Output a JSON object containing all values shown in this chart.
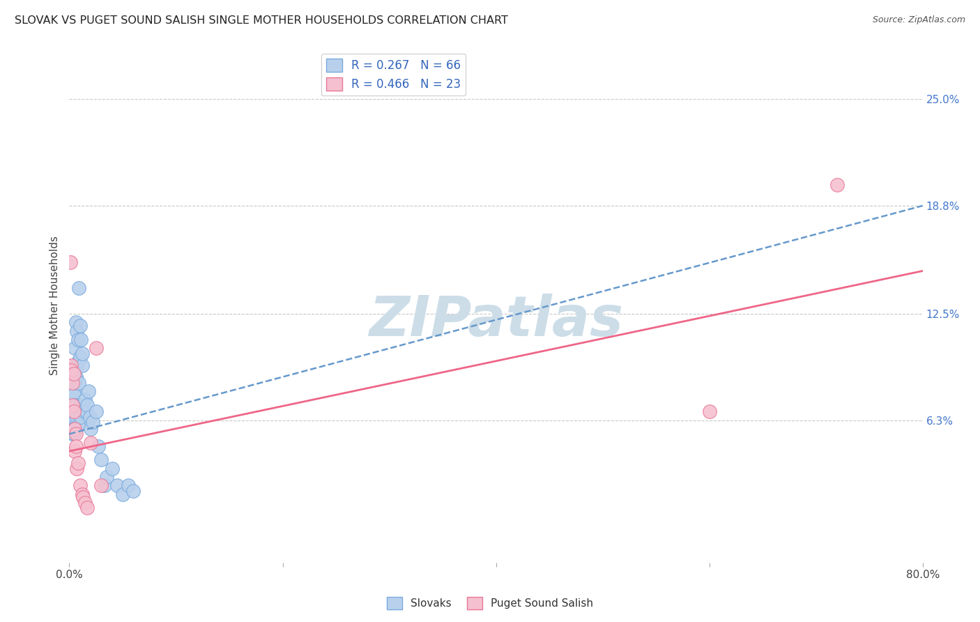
{
  "title": "SLOVAK VS PUGET SOUND SALISH SINGLE MOTHER HOUSEHOLDS CORRELATION CHART",
  "source": "Source: ZipAtlas.com",
  "ylabel": "Single Mother Households",
  "xlim": [
    0.0,
    0.8
  ],
  "ylim": [
    -0.02,
    0.28
  ],
  "ytick_positions": [
    0.063,
    0.125,
    0.188,
    0.25
  ],
  "ytick_labels": [
    "6.3%",
    "12.5%",
    "18.8%",
    "25.0%"
  ],
  "grid_color": "#c8c8c8",
  "background_color": "#ffffff",
  "slovak_fill_color": "#b8d0ec",
  "slovak_edge_color": "#7aabde",
  "salish_fill_color": "#f5c0d0",
  "salish_edge_color": "#e87898",
  "slovak_line_color": "#6699cc",
  "salish_line_color": "#ee6688",
  "slovak_R": 0.267,
  "slovak_N": 66,
  "salish_R": 0.466,
  "salish_N": 23,
  "watermark": "ZIPatlas",
  "watermark_color": "#ccdde8",
  "legend_label_slovak": "Slovaks",
  "legend_label_salish": "Puget Sound Salish",
  "slovak_points": [
    [
      0.001,
      0.071
    ],
    [
      0.001,
      0.063
    ],
    [
      0.001,
      0.058
    ],
    [
      0.002,
      0.068
    ],
    [
      0.002,
      0.072
    ],
    [
      0.002,
      0.06
    ],
    [
      0.002,
      0.065
    ],
    [
      0.002,
      0.058
    ],
    [
      0.003,
      0.075
    ],
    [
      0.003,
      0.063
    ],
    [
      0.003,
      0.07
    ],
    [
      0.003,
      0.055
    ],
    [
      0.003,
      0.068
    ],
    [
      0.003,
      0.072
    ],
    [
      0.003,
      0.06
    ],
    [
      0.004,
      0.058
    ],
    [
      0.004,
      0.08
    ],
    [
      0.004,
      0.065
    ],
    [
      0.004,
      0.058
    ],
    [
      0.004,
      0.078
    ],
    [
      0.004,
      0.068
    ],
    [
      0.004,
      0.055
    ],
    [
      0.005,
      0.085
    ],
    [
      0.005,
      0.072
    ],
    [
      0.005,
      0.058
    ],
    [
      0.005,
      0.105
    ],
    [
      0.005,
      0.09
    ],
    [
      0.005,
      0.095
    ],
    [
      0.006,
      0.088
    ],
    [
      0.006,
      0.072
    ],
    [
      0.006,
      0.12
    ],
    [
      0.006,
      0.088
    ],
    [
      0.007,
      0.115
    ],
    [
      0.007,
      0.095
    ],
    [
      0.007,
      0.065
    ],
    [
      0.008,
      0.11
    ],
    [
      0.008,
      0.06
    ],
    [
      0.009,
      0.14
    ],
    [
      0.009,
      0.098
    ],
    [
      0.009,
      0.085
    ],
    [
      0.01,
      0.1
    ],
    [
      0.01,
      0.118
    ],
    [
      0.01,
      0.072
    ],
    [
      0.011,
      0.11
    ],
    [
      0.011,
      0.065
    ],
    [
      0.012,
      0.095
    ],
    [
      0.012,
      0.102
    ],
    [
      0.013,
      0.072
    ],
    [
      0.014,
      0.068
    ],
    [
      0.015,
      0.075
    ],
    [
      0.016,
      0.068
    ],
    [
      0.017,
      0.072
    ],
    [
      0.018,
      0.08
    ],
    [
      0.019,
      0.065
    ],
    [
      0.02,
      0.058
    ],
    [
      0.022,
      0.062
    ],
    [
      0.025,
      0.068
    ],
    [
      0.027,
      0.048
    ],
    [
      0.03,
      0.04
    ],
    [
      0.033,
      0.025
    ],
    [
      0.035,
      0.03
    ],
    [
      0.04,
      0.035
    ],
    [
      0.045,
      0.025
    ],
    [
      0.05,
      0.02
    ],
    [
      0.055,
      0.025
    ],
    [
      0.06,
      0.022
    ]
  ],
  "salish_points": [
    [
      0.001,
      0.155
    ],
    [
      0.002,
      0.095
    ],
    [
      0.002,
      0.092
    ],
    [
      0.003,
      0.085
    ],
    [
      0.003,
      0.072
    ],
    [
      0.004,
      0.09
    ],
    [
      0.004,
      0.068
    ],
    [
      0.005,
      0.058
    ],
    [
      0.005,
      0.045
    ],
    [
      0.006,
      0.055
    ],
    [
      0.006,
      0.048
    ],
    [
      0.007,
      0.035
    ],
    [
      0.008,
      0.038
    ],
    [
      0.01,
      0.025
    ],
    [
      0.012,
      0.02
    ],
    [
      0.013,
      0.018
    ],
    [
      0.015,
      0.015
    ],
    [
      0.017,
      0.012
    ],
    [
      0.02,
      0.05
    ],
    [
      0.025,
      0.105
    ],
    [
      0.03,
      0.025
    ],
    [
      0.6,
      0.068
    ],
    [
      0.72,
      0.2
    ]
  ],
  "trendline_slovak_x0": 0.0,
  "trendline_slovak_y0": 0.055,
  "trendline_slovak_x1": 0.8,
  "trendline_slovak_y1": 0.188,
  "trendline_salish_x0": 0.0,
  "trendline_salish_y0": 0.045,
  "trendline_salish_x1": 0.8,
  "trendline_salish_y1": 0.15
}
